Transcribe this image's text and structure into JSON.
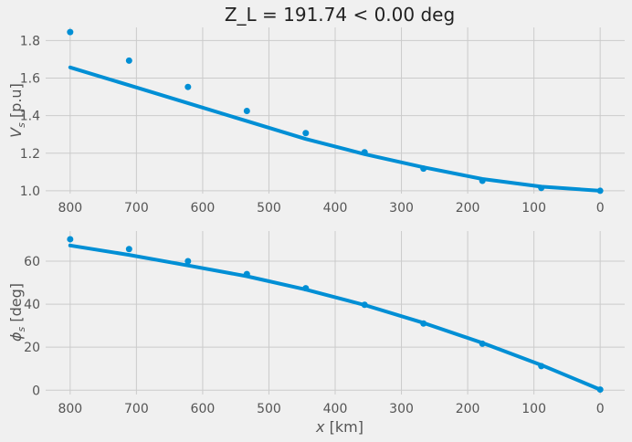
{
  "chart_data": [
    {
      "type": "scatter",
      "title": "Z_L = 191.74 < 0.00 deg",
      "xlabel": "",
      "ylabel_main": "V",
      "ylabel_sub": "s",
      "ylabel_unit": "[p.u]",
      "x_inverted": true,
      "xlim": [
        837,
        -37
      ],
      "ylim": [
        0.985,
        1.87
      ],
      "xticks": [
        800,
        700,
        600,
        500,
        400,
        300,
        200,
        100,
        0
      ],
      "yticks": [
        1.0,
        1.2,
        1.4,
        1.6,
        1.8
      ],
      "grid": true,
      "color": "#008fd5",
      "series": [
        {
          "kind": "points",
          "x": [
            800,
            711.1,
            622.2,
            533.3,
            444.4,
            355.6,
            266.7,
            177.8,
            88.9,
            0
          ],
          "y": [
            1.845,
            1.693,
            1.553,
            1.425,
            1.307,
            1.205,
            1.118,
            1.053,
            1.015,
            1.0
          ]
        },
        {
          "kind": "line",
          "x": [
            800,
            711.1,
            622.2,
            533.3,
            444.4,
            355.6,
            266.7,
            177.8,
            88.9,
            0
          ],
          "y": [
            1.657,
            1.562,
            1.467,
            1.371,
            1.276,
            1.195,
            1.125,
            1.063,
            1.022,
            1.0
          ]
        }
      ]
    },
    {
      "type": "scatter",
      "xlabel_main": "x",
      "xlabel_unit": "[km]",
      "ylabel_main": "ϕ",
      "ylabel_sub": "s",
      "ylabel_unit": "[deg]",
      "x_inverted": true,
      "xlim": [
        837,
        -37
      ],
      "ylim": [
        -2,
        74
      ],
      "xticks": [
        800,
        700,
        600,
        500,
        400,
        300,
        200,
        100,
        0
      ],
      "yticks": [
        0,
        20,
        40,
        60
      ],
      "grid": true,
      "color": "#008fd5",
      "series": [
        {
          "kind": "points",
          "x": [
            800,
            711.1,
            622.2,
            533.3,
            444.4,
            355.6,
            266.7,
            177.8,
            88.9,
            0
          ],
          "y": [
            70.2,
            65.6,
            60.0,
            54.0,
            47.4,
            39.7,
            31.0,
            21.6,
            11.2,
            0.3
          ]
        },
        {
          "kind": "line",
          "x": [
            800,
            711.1,
            622.2,
            533.3,
            444.4,
            355.6,
            266.7,
            177.8,
            88.9,
            0
          ],
          "y": [
            67.3,
            62.9,
            58.0,
            53.0,
            46.8,
            39.6,
            31.3,
            22.0,
            11.7,
            0.3
          ]
        }
      ]
    }
  ]
}
